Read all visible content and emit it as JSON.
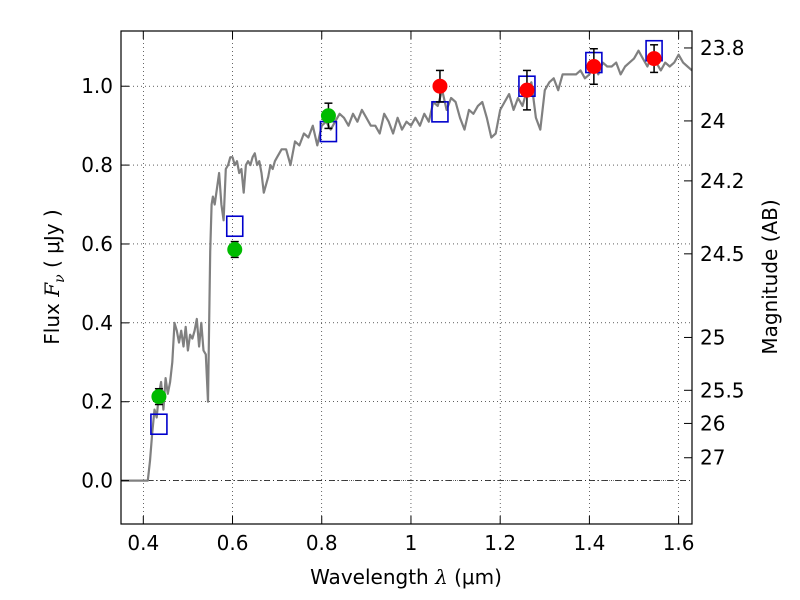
{
  "chart_data": {
    "type": "line",
    "title": "",
    "xlabel": {
      "prefix": "Wavelength  ",
      "symbol": "λ",
      "unit": " (μm)"
    },
    "ylabel": {
      "prefix": "Flux  ",
      "symbol": "F",
      "subscript": "ν",
      "unit": "  ( μJy )"
    },
    "y2label": "Magnitude (AB)",
    "xlim": [
      0.35,
      1.63
    ],
    "ylim": [
      -0.11,
      1.14
    ],
    "grid": true,
    "xticks": [
      0.4,
      0.6,
      0.8,
      1.0,
      1.2,
      1.4,
      1.6
    ],
    "xtick_labels": [
      "0.4",
      "0.6",
      "0.8",
      "1",
      "1.2",
      "1.4",
      "1.6"
    ],
    "yticks": [
      0.0,
      0.2,
      0.4,
      0.6,
      0.8,
      1.0
    ],
    "ytick_labels": [
      "0.0",
      "0.2",
      "0.4",
      "0.6",
      "0.8",
      "1.0"
    ],
    "y2ticks": [
      {
        "flux": 1.097,
        "label": "23.8"
      },
      {
        "flux": 0.912,
        "label": "24"
      },
      {
        "flux": 0.76,
        "label": "24.2"
      },
      {
        "flux": 0.575,
        "label": "24.5"
      },
      {
        "flux": 0.363,
        "label": "25"
      },
      {
        "flux": 0.229,
        "label": "25.5"
      },
      {
        "flux": 0.145,
        "label": "26"
      },
      {
        "flux": 0.058,
        "label": "27"
      }
    ],
    "colors": {
      "model": "#808080",
      "green": "#00bb00",
      "red": "#ff0000",
      "model_band": "#0000cc",
      "errorbar": "#000000",
      "zero_line": "#000000"
    },
    "series": [
      {
        "style": "line",
        "x": [
          0.35,
          0.41,
          0.415,
          0.42,
          0.425,
          0.43,
          0.435,
          0.44,
          0.445,
          0.45,
          0.455,
          0.46,
          0.465,
          0.47,
          0.475,
          0.48,
          0.485,
          0.49,
          0.495,
          0.5,
          0.505,
          0.51,
          0.515,
          0.52,
          0.525,
          0.53,
          0.535,
          0.54,
          0.545,
          0.55,
          0.553,
          0.556,
          0.56,
          0.565,
          0.57,
          0.575,
          0.58,
          0.585,
          0.59,
          0.595,
          0.6,
          0.605,
          0.61,
          0.615,
          0.62,
          0.625,
          0.63,
          0.635,
          0.64,
          0.645,
          0.65,
          0.655,
          0.66,
          0.665,
          0.67,
          0.675,
          0.68,
          0.685,
          0.69,
          0.695,
          0.7,
          0.71,
          0.72,
          0.73,
          0.74,
          0.75,
          0.76,
          0.77,
          0.78,
          0.79,
          0.8,
          0.81,
          0.82,
          0.83,
          0.84,
          0.85,
          0.86,
          0.87,
          0.88,
          0.89,
          0.9,
          0.91,
          0.92,
          0.93,
          0.94,
          0.95,
          0.96,
          0.97,
          0.98,
          0.99,
          1.0,
          1.01,
          1.02,
          1.03,
          1.04,
          1.05,
          1.06,
          1.07,
          1.08,
          1.09,
          1.1,
          1.11,
          1.12,
          1.13,
          1.14,
          1.15,
          1.16,
          1.17,
          1.18,
          1.19,
          1.2,
          1.21,
          1.22,
          1.23,
          1.24,
          1.25,
          1.26,
          1.27,
          1.28,
          1.29,
          1.3,
          1.31,
          1.32,
          1.33,
          1.34,
          1.35,
          1.36,
          1.37,
          1.38,
          1.39,
          1.4,
          1.41,
          1.42,
          1.43,
          1.44,
          1.45,
          1.46,
          1.47,
          1.48,
          1.49,
          1.5,
          1.51,
          1.52,
          1.53,
          1.54,
          1.55,
          1.56,
          1.57,
          1.58,
          1.59,
          1.6,
          1.61,
          1.62,
          1.63
        ],
        "y": [
          0.0,
          0.0,
          0.05,
          0.12,
          0.18,
          0.16,
          0.22,
          0.25,
          0.18,
          0.26,
          0.22,
          0.25,
          0.3,
          0.4,
          0.38,
          0.35,
          0.38,
          0.34,
          0.39,
          0.33,
          0.37,
          0.36,
          0.38,
          0.41,
          0.34,
          0.4,
          0.33,
          0.32,
          0.2,
          0.58,
          0.7,
          0.72,
          0.7,
          0.74,
          0.78,
          0.7,
          0.66,
          0.79,
          0.8,
          0.82,
          0.82,
          0.8,
          0.81,
          0.78,
          0.79,
          0.73,
          0.8,
          0.81,
          0.8,
          0.82,
          0.83,
          0.8,
          0.81,
          0.78,
          0.73,
          0.75,
          0.77,
          0.8,
          0.79,
          0.81,
          0.82,
          0.84,
          0.84,
          0.8,
          0.86,
          0.85,
          0.88,
          0.87,
          0.9,
          0.85,
          0.9,
          0.91,
          0.89,
          0.91,
          0.93,
          0.92,
          0.9,
          0.93,
          0.91,
          0.94,
          0.92,
          0.9,
          0.9,
          0.88,
          0.93,
          0.91,
          0.88,
          0.92,
          0.89,
          0.91,
          0.9,
          0.92,
          0.9,
          0.93,
          0.91,
          0.96,
          0.95,
          0.99,
          0.94,
          0.97,
          0.96,
          0.92,
          0.89,
          0.94,
          0.93,
          0.95,
          0.96,
          0.92,
          0.87,
          0.88,
          0.94,
          0.96,
          0.98,
          0.94,
          0.97,
          0.95,
          0.99,
          1.01,
          0.92,
          0.89,
          0.99,
          1.01,
          1.02,
          0.99,
          1.03,
          1.03,
          1.03,
          1.03,
          1.04,
          1.02,
          1.03,
          1.06,
          1.03,
          1.06,
          1.05,
          1.05,
          1.06,
          1.03,
          1.05,
          1.06,
          1.07,
          1.09,
          1.07,
          1.05,
          1.08,
          1.06,
          1.04,
          1.06,
          1.05,
          1.06,
          1.08,
          1.06,
          1.05,
          1.04
        ]
      },
      {
        "style": "points",
        "marker": "circle",
        "color": "green",
        "x": [
          0.435,
          0.605,
          0.815
        ],
        "y": [
          0.213,
          0.586,
          0.925
        ],
        "yerr": [
          0.02,
          0.02,
          0.032
        ]
      },
      {
        "style": "points",
        "marker": "circle",
        "color": "red",
        "x": [
          1.065,
          1.26,
          1.41,
          1.545
        ],
        "y": [
          1.0,
          0.99,
          1.05,
          1.07
        ],
        "yerr": [
          0.04,
          0.05,
          0.045,
          0.035
        ]
      },
      {
        "style": "points",
        "marker": "open-square",
        "color": "model_band",
        "x": [
          0.435,
          0.605,
          0.815,
          1.065,
          1.26,
          1.41,
          1.545
        ],
        "y": [
          0.143,
          0.645,
          0.885,
          0.935,
          1.0,
          1.06,
          1.09
        ]
      }
    ]
  }
}
